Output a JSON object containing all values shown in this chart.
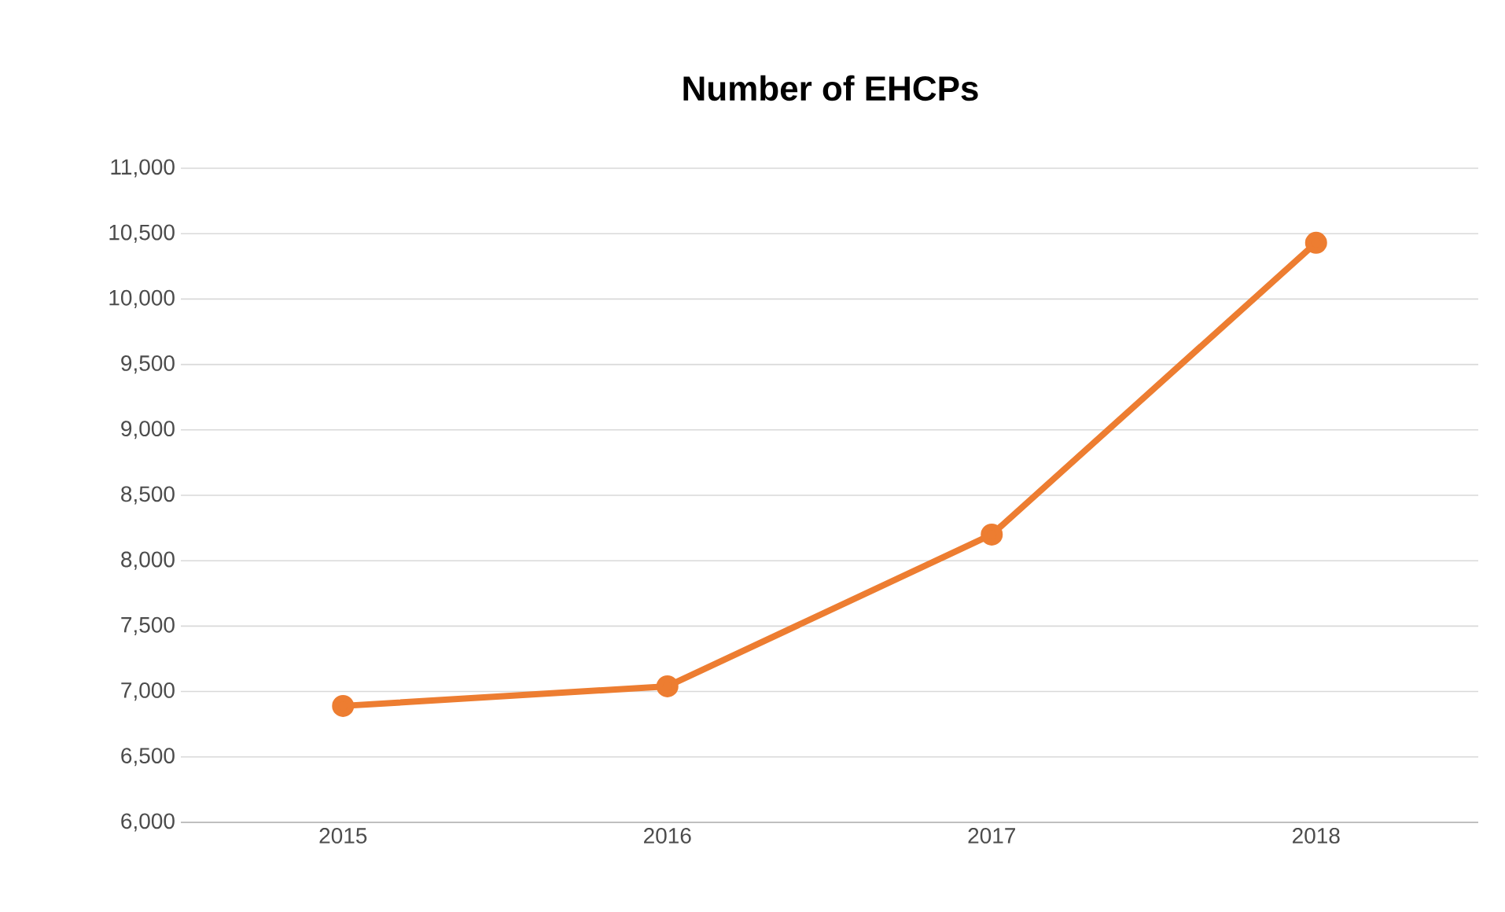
{
  "chart_data": {
    "type": "line",
    "title": "Number of EHCPs",
    "categories": [
      "2015",
      "2016",
      "2017",
      "2018"
    ],
    "series": [
      {
        "color": "#ed7d31",
        "values": [
          6890,
          7040,
          8200,
          10430
        ]
      }
    ],
    "ylim": [
      6000,
      11000
    ],
    "yticks": [
      {
        "value": 6000,
        "label": "6,000"
      },
      {
        "value": 6500,
        "label": "6,500"
      },
      {
        "value": 7000,
        "label": "7,000"
      },
      {
        "value": 7500,
        "label": "7,500"
      },
      {
        "value": 8000,
        "label": "8,000"
      },
      {
        "value": 8500,
        "label": "8,500"
      },
      {
        "value": 9000,
        "label": "9,000"
      },
      {
        "value": 9500,
        "label": "9,500"
      },
      {
        "value": 10000,
        "label": "10,000"
      },
      {
        "value": 10500,
        "label": "10,500"
      },
      {
        "value": 11000,
        "label": "11,000"
      }
    ],
    "grid": "y",
    "marker": "circle",
    "legend": false
  }
}
